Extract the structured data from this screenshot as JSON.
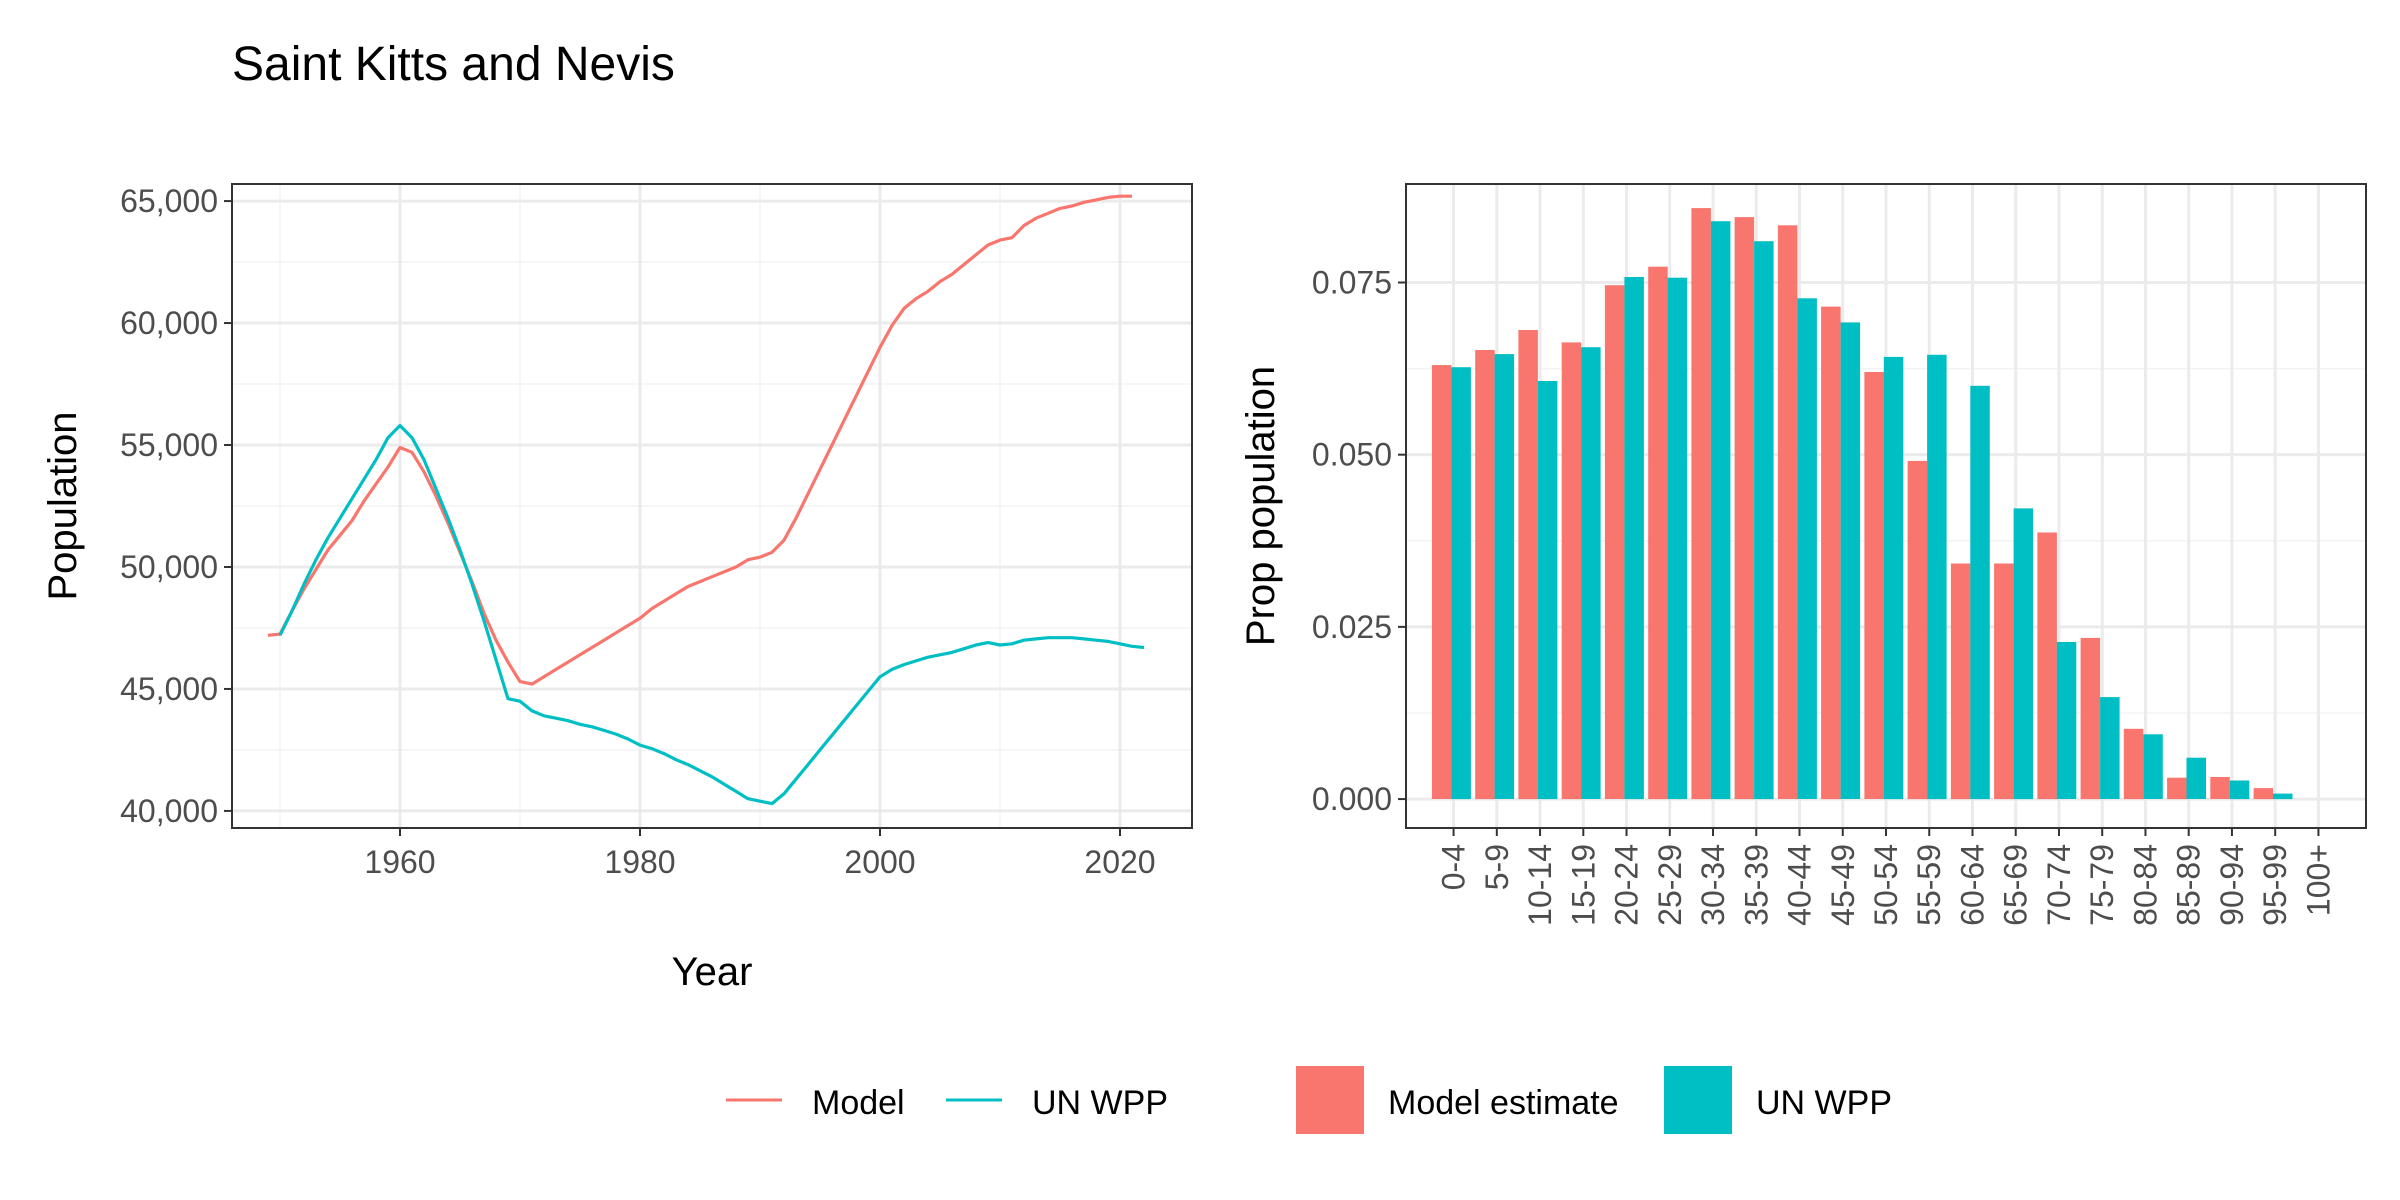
{
  "title": "Saint Kitts and Nevis",
  "colors": {
    "model": "#F8766D",
    "un": "#00BFC4",
    "grid_major": "#EBEBEB",
    "grid_minor": "#F3F3F3",
    "tick_text": "#4D4D4D",
    "panel_border": "#333333"
  },
  "chart_data": [
    {
      "type": "line",
      "xlabel": "Year",
      "ylabel": "Population",
      "xlim": [
        1946,
        2026
      ],
      "ylim": [
        39300,
        65700
      ],
      "x_ticks": [
        "1960",
        "1980",
        "2000",
        "2020"
      ],
      "y_ticks": [
        "40,000",
        "45,000",
        "50,000",
        "55,000",
        "60,000",
        "65,000"
      ],
      "grid": true,
      "series": [
        {
          "name": "Model",
          "color": "#F8766D",
          "points": [
            [
              1949,
              47200
            ],
            [
              1950,
              47250
            ],
            [
              1951,
              48200
            ],
            [
              1952,
              49100
            ],
            [
              1953,
              49900
            ],
            [
              1954,
              50700
            ],
            [
              1955,
              51300
            ],
            [
              1956,
              51900
            ],
            [
              1957,
              52700
            ],
            [
              1958,
              53400
            ],
            [
              1959,
              54100
            ],
            [
              1960,
              54900
            ],
            [
              1961,
              54700
            ],
            [
              1962,
              53900
            ],
            [
              1963,
              52900
            ],
            [
              1964,
              51800
            ],
            [
              1965,
              50600
            ],
            [
              1966,
              49400
            ],
            [
              1967,
              48100
            ],
            [
              1968,
              47000
            ],
            [
              1969,
              46100
            ],
            [
              1970,
              45300
            ],
            [
              1971,
              45200
            ],
            [
              1972,
              45500
            ],
            [
              1973,
              45800
            ],
            [
              1974,
              46100
            ],
            [
              1975,
              46400
            ],
            [
              1976,
              46700
            ],
            [
              1977,
              47000
            ],
            [
              1978,
              47300
            ],
            [
              1979,
              47600
            ],
            [
              1980,
              47900
            ],
            [
              1981,
              48300
            ],
            [
              1982,
              48600
            ],
            [
              1983,
              48900
            ],
            [
              1984,
              49200
            ],
            [
              1985,
              49400
            ],
            [
              1986,
              49600
            ],
            [
              1987,
              49800
            ],
            [
              1988,
              50000
            ],
            [
              1989,
              50300
            ],
            [
              1990,
              50400
            ],
            [
              1991,
              50600
            ],
            [
              1992,
              51100
            ],
            [
              1993,
              52000
            ],
            [
              1994,
              53000
            ],
            [
              1995,
              54000
            ],
            [
              1996,
              55000
            ],
            [
              1997,
              56000
            ],
            [
              1998,
              57000
            ],
            [
              1999,
              58000
            ],
            [
              2000,
              59000
            ],
            [
              2001,
              59900
            ],
            [
              2002,
              60600
            ],
            [
              2003,
              61000
            ],
            [
              2004,
              61300
            ],
            [
              2005,
              61700
            ],
            [
              2006,
              62000
            ],
            [
              2007,
              62400
            ],
            [
              2008,
              62800
            ],
            [
              2009,
              63200
            ],
            [
              2010,
              63400
            ],
            [
              2011,
              63500
            ],
            [
              2012,
              64000
            ],
            [
              2013,
              64300
            ],
            [
              2014,
              64500
            ],
            [
              2015,
              64700
            ],
            [
              2016,
              64800
            ],
            [
              2017,
              64950
            ],
            [
              2018,
              65050
            ],
            [
              2019,
              65150
            ],
            [
              2020,
              65200
            ],
            [
              2021,
              65200
            ]
          ]
        },
        {
          "name": "UN WPP",
          "color": "#00BFC4",
          "points": [
            [
              1950,
              47200
            ],
            [
              1951,
              48200
            ],
            [
              1952,
              49300
            ],
            [
              1953,
              50300
            ],
            [
              1954,
              51200
            ],
            [
              1955,
              52000
            ],
            [
              1956,
              52800
            ],
            [
              1957,
              53600
            ],
            [
              1958,
              54400
            ],
            [
              1959,
              55300
            ],
            [
              1960,
              55800
            ],
            [
              1961,
              55300
            ],
            [
              1962,
              54400
            ],
            [
              1963,
              53200
            ],
            [
              1964,
              52000
            ],
            [
              1965,
              50700
            ],
            [
              1966,
              49300
            ],
            [
              1967,
              47800
            ],
            [
              1968,
              46200
            ],
            [
              1969,
              44600
            ],
            [
              1970,
              44500
            ],
            [
              1971,
              44100
            ],
            [
              1972,
              43900
            ],
            [
              1973,
              43800
            ],
            [
              1974,
              43700
            ],
            [
              1975,
              43550
            ],
            [
              1976,
              43450
            ],
            [
              1977,
              43300
            ],
            [
              1978,
              43150
            ],
            [
              1979,
              42950
            ],
            [
              1980,
              42700
            ],
            [
              1981,
              42550
            ],
            [
              1982,
              42350
            ],
            [
              1983,
              42100
            ],
            [
              1984,
              41900
            ],
            [
              1985,
              41650
            ],
            [
              1986,
              41400
            ],
            [
              1987,
              41100
            ],
            [
              1988,
              40800
            ],
            [
              1989,
              40500
            ],
            [
              1990,
              40400
            ],
            [
              1991,
              40300
            ],
            [
              1992,
              40700
            ],
            [
              1993,
              41300
            ],
            [
              1994,
              41900
            ],
            [
              1995,
              42500
            ],
            [
              1996,
              43100
            ],
            [
              1997,
              43700
            ],
            [
              1998,
              44300
            ],
            [
              1999,
              44900
            ],
            [
              2000,
              45500
            ],
            [
              2001,
              45800
            ],
            [
              2002,
              46000
            ],
            [
              2003,
              46150
            ],
            [
              2004,
              46300
            ],
            [
              2005,
              46400
            ],
            [
              2006,
              46500
            ],
            [
              2007,
              46650
            ],
            [
              2008,
              46800
            ],
            [
              2009,
              46900
            ],
            [
              2010,
              46800
            ],
            [
              2011,
              46850
            ],
            [
              2012,
              47000
            ],
            [
              2013,
              47050
            ],
            [
              2014,
              47100
            ],
            [
              2015,
              47100
            ],
            [
              2016,
              47100
            ],
            [
              2017,
              47050
            ],
            [
              2018,
              47000
            ],
            [
              2019,
              46950
            ],
            [
              2020,
              46850
            ],
            [
              2021,
              46750
            ],
            [
              2022,
              46700
            ]
          ]
        }
      ]
    },
    {
      "type": "bar",
      "xlabel": "",
      "ylabel": "Prop population",
      "ylim": [
        -0.0042,
        0.0893
      ],
      "y_ticks": [
        "0.000",
        "0.025",
        "0.050",
        "0.075"
      ],
      "grid": true,
      "categories": [
        "0-4",
        "5-9",
        "10-14",
        "15-19",
        "20-24",
        "25-29",
        "30-34",
        "35-39",
        "40-44",
        "45-49",
        "50-54",
        "55-59",
        "60-64",
        "65-69",
        "70-74",
        "75-79",
        "80-84",
        "85-89",
        "90-94",
        "95-99",
        "100+"
      ],
      "series": [
        {
          "name": "Model estimate",
          "color": "#F8766D",
          "values": [
            0.063,
            0.0652,
            0.0681,
            0.0663,
            0.0746,
            0.0773,
            0.0858,
            0.0845,
            0.0833,
            0.0715,
            0.062,
            0.0491,
            0.0342,
            0.0342,
            0.0387,
            0.0234,
            0.0102,
            0.0031,
            0.0032,
            0.0016,
            0.0
          ]
        },
        {
          "name": "UN WPP",
          "color": "#00BFC4",
          "values": [
            0.0627,
            0.0646,
            0.0607,
            0.0656,
            0.0758,
            0.0757,
            0.0839,
            0.081,
            0.0727,
            0.0692,
            0.0642,
            0.0645,
            0.06,
            0.0422,
            0.0228,
            0.0148,
            0.0094,
            0.006,
            0.0027,
            0.0008,
            0.0
          ]
        }
      ]
    }
  ],
  "legend_lines": [
    {
      "label": "Model",
      "color": "#F8766D"
    },
    {
      "label": "UN WPP",
      "color": "#00BFC4"
    }
  ],
  "legend_bars": [
    {
      "label": "Model estimate",
      "color": "#F8766D"
    },
    {
      "label": "UN WPP",
      "color": "#00BFC4"
    }
  ]
}
